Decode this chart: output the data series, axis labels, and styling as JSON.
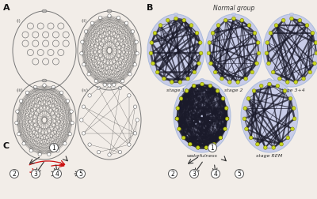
{
  "figsize": [
    4.0,
    2.53
  ],
  "dpi": 100,
  "bg_color": "#f2ede8",
  "head_bg_color": "#c8cce8",
  "node_green": "#c8d820",
  "node_outline": "#888800",
  "line_dark": "#1a1a2a",
  "head_outline": "#999999",
  "panel_labels": [
    "A",
    "B",
    "C"
  ],
  "normal_group_label": "Normal group",
  "stage_labels": [
    "stage 1",
    "stage 2",
    "stage 3+4",
    "wakefulness",
    "stage REM"
  ],
  "panel_a_labels": [
    "(i)",
    "(ii)",
    "(iii)",
    "(iv)"
  ]
}
